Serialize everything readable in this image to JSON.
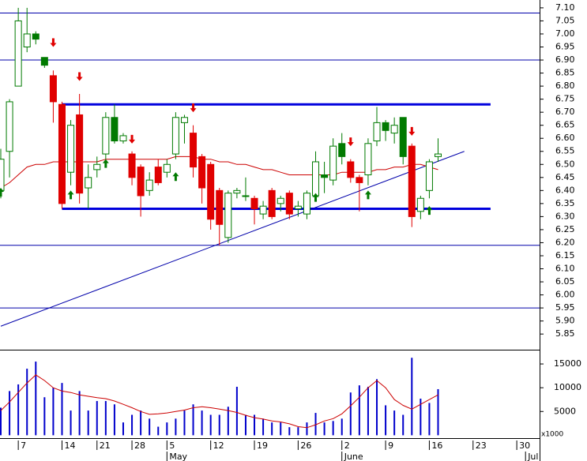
{
  "chart_data": [
    {
      "type": "candlestick",
      "open": [
        6.4,
        6.55,
        6.8,
        6.95,
        7.0,
        6.91,
        6.84,
        6.73,
        6.47,
        6.69,
        6.41,
        6.48,
        6.54,
        6.68,
        6.59,
        6.54,
        6.49,
        6.4,
        6.49,
        6.47,
        6.54,
        6.66,
        6.62,
        6.53,
        6.5,
        6.4,
        6.22,
        6.39,
        6.38,
        6.37,
        6.31,
        6.4,
        6.35,
        6.39,
        6.33,
        6.31,
        6.38,
        6.46,
        6.44,
        6.58,
        6.51,
        6.45,
        6.46,
        6.59,
        6.66,
        6.62,
        6.68,
        6.57,
        6.32,
        6.4,
        6.53,
        null,
        null,
        null,
        null,
        null,
        null,
        null,
        null,
        null,
        null,
        null
      ],
      "high": [
        6.56,
        6.75,
        7.1,
        7.1,
        7.01,
        6.91,
        6.86,
        6.74,
        6.67,
        6.77,
        6.5,
        6.53,
        6.7,
        6.73,
        6.62,
        6.55,
        6.5,
        6.47,
        6.52,
        6.52,
        6.7,
        6.69,
        6.65,
        6.54,
        6.51,
        6.41,
        6.4,
        6.41,
        6.45,
        6.38,
        6.36,
        6.41,
        6.38,
        6.4,
        6.36,
        6.4,
        6.55,
        6.51,
        6.6,
        6.62,
        6.52,
        6.46,
        6.6,
        6.72,
        6.67,
        6.68,
        6.68,
        6.58,
        6.38,
        6.52,
        6.6,
        null,
        null,
        null,
        null,
        null,
        null,
        null,
        null,
        null,
        null,
        null
      ],
      "low": [
        6.37,
        6.45,
        6.8,
        6.93,
        6.96,
        6.87,
        6.66,
        6.33,
        6.42,
        6.35,
        6.33,
        6.45,
        6.52,
        6.58,
        6.58,
        6.42,
        6.3,
        6.38,
        6.42,
        6.45,
        6.52,
        6.58,
        6.45,
        6.35,
        6.25,
        6.19,
        6.2,
        6.37,
        6.36,
        6.27,
        6.29,
        6.29,
        6.32,
        6.29,
        6.3,
        6.29,
        6.36,
        6.39,
        6.42,
        6.5,
        6.43,
        6.32,
        6.42,
        6.57,
        6.59,
        6.58,
        6.5,
        6.26,
        6.29,
        6.37,
        6.51,
        null,
        null,
        null,
        null,
        null,
        null,
        null,
        null,
        null,
        null,
        null
      ],
      "close": [
        6.52,
        6.74,
        7.05,
        7.0,
        6.98,
        6.88,
        6.74,
        6.35,
        6.65,
        6.39,
        6.45,
        6.5,
        6.68,
        6.59,
        6.61,
        6.45,
        6.38,
        6.44,
        6.43,
        6.5,
        6.68,
        6.68,
        6.49,
        6.41,
        6.29,
        6.27,
        6.39,
        6.4,
        6.38,
        6.33,
        6.34,
        6.3,
        6.37,
        6.31,
        6.34,
        6.39,
        6.51,
        6.45,
        6.57,
        6.53,
        6.45,
        6.43,
        6.58,
        6.66,
        6.63,
        6.65,
        6.53,
        6.3,
        6.37,
        6.51,
        6.54,
        null,
        null,
        null,
        null,
        null,
        null,
        null,
        null,
        null,
        null,
        null
      ],
      "colors": [
        "#007a00",
        "#007a00",
        "#007a00",
        "#007a00",
        "#007a00",
        "#007a00",
        "#e00000",
        "#e00000",
        "#007a00",
        "#e00000",
        "#007a00",
        "#007a00",
        "#007a00",
        "#007a00",
        "#007a00",
        "#e00000",
        "#e00000",
        "#007a00",
        "#e00000",
        "#007a00",
        "#007a00",
        "#007a00",
        "#e00000",
        "#e00000",
        "#e00000",
        "#e00000",
        "#007a00",
        "#007a00",
        "#007a00",
        "#e00000",
        "#007a00",
        "#e00000",
        "#007a00",
        "#e00000",
        "#007a00",
        "#007a00",
        "#007a00",
        "#007a00",
        "#007a00",
        "#007a00",
        "#e00000",
        "#e00000",
        "#007a00",
        "#007a00",
        "#007a00",
        "#007a00",
        "#007a00",
        "#e00000",
        "#007a00",
        "#007a00",
        "#007a00",
        null,
        null,
        null,
        null,
        null,
        null,
        null,
        null,
        null,
        null,
        null
      ],
      "ma": {
        "color": "#cc0000",
        "values": [
          6.41,
          6.43,
          6.46,
          6.49,
          6.5,
          6.5,
          6.51,
          6.51,
          6.51,
          6.51,
          6.51,
          6.51,
          6.52,
          6.52,
          6.52,
          6.52,
          6.52,
          6.52,
          6.52,
          6.52,
          6.53,
          6.53,
          6.53,
          6.52,
          6.52,
          6.51,
          6.51,
          6.5,
          6.5,
          6.49,
          6.48,
          6.48,
          6.47,
          6.46,
          6.46,
          6.46,
          6.46,
          6.46,
          6.46,
          6.47,
          6.47,
          6.47,
          6.47,
          6.48,
          6.48,
          6.49,
          6.49,
          6.5,
          6.5,
          6.49,
          6.48,
          null,
          null,
          null,
          null,
          null,
          null,
          null,
          null,
          null,
          null,
          null
        ]
      },
      "hlines": [
        7.08,
        6.9,
        6.19,
        5.95
      ],
      "line_color": "#0000aa",
      "channel": [
        {
          "x": [
            7,
            56
          ],
          "values": [
            6.73,
            6.73
          ]
        },
        {
          "x": [
            7,
            56
          ],
          "values": [
            6.33,
            6.33
          ]
        }
      ],
      "channel_color": "#0000dd",
      "trendline": {
        "x": [
          0,
          53
        ],
        "values": [
          5.88,
          6.55
        ]
      },
      "sell_signals": {
        "color": "#e00000",
        "x": [
          6,
          9,
          15,
          22,
          40,
          47
        ],
        "values": [
          6.95,
          6.82,
          6.58,
          6.7,
          6.57,
          6.61
        ]
      },
      "buy_signals": {
        "color": "#007a00",
        "x": [
          0,
          8,
          12,
          20,
          36,
          42,
          49
        ],
        "values": [
          6.41,
          6.4,
          6.52,
          6.47,
          6.39,
          6.4,
          6.34
        ]
      },
      "ylim": [
        5.79,
        7.13
      ],
      "yticks": [
        5.85,
        {
          "value": 5.9,
          "label": "5.90"
        },
        5.95,
        {
          "value": 6.0,
          "label": "6.00"
        },
        6.05,
        {
          "value": 6.1,
          "label": "6.10"
        },
        6.15,
        {
          "value": 6.2,
          "label": "6.20"
        },
        6.25,
        {
          "value": 6.3,
          "label": "6.30"
        },
        6.35,
        {
          "value": 6.4,
          "label": "6.40"
        },
        6.45,
        {
          "value": 6.5,
          "label": "6.50"
        },
        6.55,
        {
          "value": 6.6,
          "label": "6.60"
        },
        6.65,
        {
          "value": 6.7,
          "label": "6.70"
        },
        6.75,
        {
          "value": 6.8,
          "label": "6.80"
        },
        6.85,
        {
          "value": 6.9,
          "label": "6.90"
        },
        6.95,
        {
          "value": 7.0,
          "label": "7.00"
        },
        7.05,
        {
          "value": 7.1,
          "label": "7.10"
        }
      ]
    },
    {
      "type": "bar",
      "categories": [
        null,
        null,
        "7",
        null,
        null,
        null,
        null,
        "14",
        null,
        null,
        null,
        "21",
        null,
        null,
        null,
        "28",
        null,
        null,
        null,
        "5",
        null,
        null,
        null,
        null,
        "12",
        null,
        null,
        null,
        null,
        "19",
        null,
        null,
        null,
        null,
        "26",
        null,
        null,
        null,
        null,
        "2",
        null,
        null,
        null,
        null,
        "9",
        null,
        null,
        null,
        null,
        "16",
        null,
        null,
        null,
        null,
        "23",
        null,
        null,
        null,
        null,
        "30",
        null,
        null
      ],
      "months": [
        null,
        null,
        null,
        null,
        null,
        null,
        null,
        null,
        null,
        null,
        null,
        null,
        null,
        null,
        null,
        null,
        null,
        null,
        null,
        "May",
        null,
        null,
        null,
        null,
        null,
        null,
        null,
        null,
        null,
        null,
        null,
        null,
        null,
        null,
        null,
        null,
        null,
        null,
        null,
        "June",
        null,
        null,
        null,
        null,
        null,
        null,
        null,
        null,
        null,
        null,
        null,
        null,
        null,
        null,
        null,
        null,
        null,
        null,
        null,
        null,
        "Jul",
        null
      ],
      "values": [
        5800,
        9300,
        10700,
        14000,
        15500,
        8000,
        10000,
        11000,
        5200,
        9300,
        5200,
        7200,
        7200,
        6500,
        2700,
        4300,
        5200,
        3500,
        1800,
        2700,
        3500,
        5200,
        6500,
        5200,
        4300,
        4300,
        6000,
        10200,
        4300,
        4300,
        3500,
        2700,
        2700,
        1700,
        1700,
        2700,
        4700,
        2700,
        3000,
        3500,
        9000,
        10500,
        10200,
        11800,
        6300,
        5200,
        4300,
        16300,
        7700,
        6800,
        9700,
        null,
        null,
        null,
        null,
        null,
        null,
        null,
        null,
        null,
        null,
        null
      ],
      "color": "#0000cc",
      "ma": {
        "color": "#cc0000",
        "values": [
          5200,
          7000,
          9000,
          11000,
          12700,
          11500,
          10000,
          9300,
          9000,
          8500,
          8200,
          7900,
          7700,
          7200,
          6500,
          5800,
          5000,
          4400,
          4500,
          4700,
          5000,
          5300,
          5800,
          6000,
          5800,
          5500,
          5200,
          4800,
          4200,
          3700,
          3400,
          3000,
          2800,
          2400,
          1800,
          1600,
          2200,
          3000,
          3500,
          4500,
          6200,
          8000,
          10000,
          11500,
          10000,
          7500,
          6300,
          5500,
          6500,
          7500,
          8500,
          null,
          null,
          null,
          null,
          null,
          null,
          null,
          null,
          null,
          null,
          null
        ]
      },
      "unit_label": "x1000",
      "ylim": [
        -600,
        18000
      ],
      "yticks": [
        5000,
        10000,
        15000
      ]
    }
  ]
}
